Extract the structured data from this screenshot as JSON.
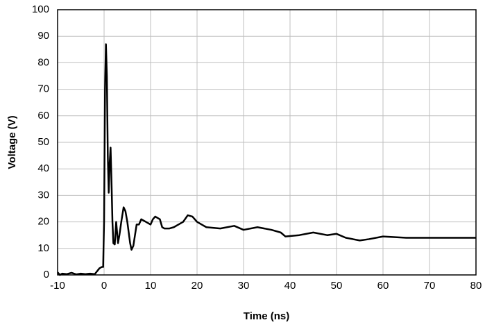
{
  "chart_data": {
    "type": "line",
    "x_label": "Time (ns)",
    "y_label": "Voltage (V)",
    "xlim": [
      -10,
      80
    ],
    "xticks": [
      -10,
      0,
      10,
      20,
      30,
      40,
      50,
      60,
      70,
      80
    ],
    "ylim": [
      0,
      100
    ],
    "yticks": [
      0,
      10,
      20,
      30,
      40,
      50,
      60,
      70,
      80,
      90,
      100
    ],
    "grid": true,
    "series": [
      {
        "name": "Voltage",
        "color": "#000000",
        "x": [
          -10,
          -9.5,
          -9,
          -8,
          -7,
          -6,
          -5,
          -4,
          -3,
          -2,
          -1,
          -0.5,
          -0.2,
          0,
          0.2,
          0.4,
          0.6,
          0.8,
          1.0,
          1.2,
          1.4,
          1.6,
          1.8,
          2.0,
          2.3,
          2.6,
          3.0,
          3.3,
          3.7,
          4.2,
          4.6,
          5.0,
          5.6,
          5.9,
          6.3,
          7.0,
          7.5,
          8,
          9,
          10,
          10.5,
          11,
          12,
          12.5,
          13,
          14,
          15,
          16,
          17,
          18,
          19,
          20,
          21,
          22,
          25,
          28,
          30,
          33,
          36,
          38,
          39,
          42,
          45,
          48,
          50,
          52,
          55,
          57,
          60,
          65,
          70,
          75,
          80
        ],
        "values": [
          1,
          0,
          0.5,
          0.3,
          0.8,
          0.2,
          0.5,
          0.3,
          0.5,
          0.3,
          2.5,
          3,
          3,
          20,
          70,
          87,
          75,
          45,
          31,
          42,
          48,
          35,
          20,
          12,
          11.5,
          20,
          12,
          15,
          20,
          25.5,
          24,
          20,
          12,
          9.5,
          11,
          19,
          19,
          21,
          20,
          19,
          21,
          22,
          21,
          18,
          17.5,
          17.5,
          18,
          19,
          20,
          22.5,
          22,
          20,
          19,
          18,
          17.5,
          18.5,
          17,
          18,
          17,
          16,
          14.5,
          15,
          16,
          15,
          15.5,
          14,
          13,
          13.5,
          14.5,
          14,
          14,
          14,
          14
        ]
      }
    ]
  }
}
